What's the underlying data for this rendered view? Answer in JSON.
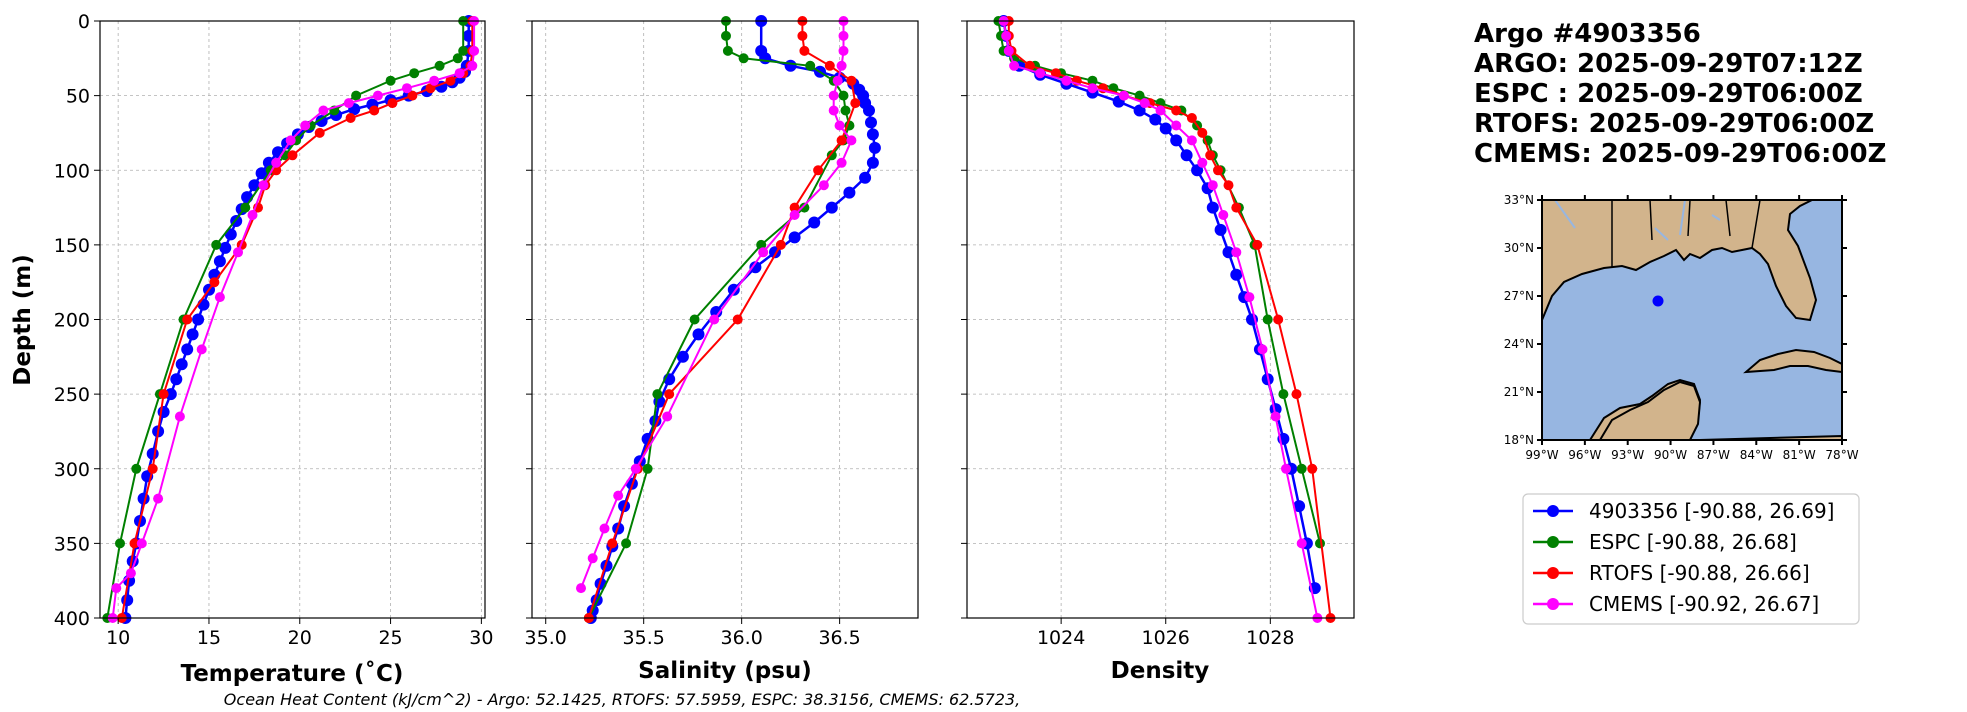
{
  "chart_data": [
    {
      "type": "line",
      "panel": "temperature",
      "xlabel": "Temperature (˚C)",
      "ylabel": "Depth (m)",
      "xlim": [
        9,
        30.2
      ],
      "ylim": [
        400,
        0
      ],
      "xticks": [
        10,
        15,
        20,
        25,
        30
      ],
      "yticks": [
        0,
        50,
        100,
        150,
        200,
        250,
        300,
        350,
        400
      ],
      "grid": true,
      "series": [
        {
          "name": "4903356",
          "color": "#0000ff",
          "x": [
            29.3,
            29.3,
            29.3,
            29.2,
            29.1,
            28.8,
            28.4,
            27.8,
            27.0,
            26.0,
            25.0,
            24.0,
            23.0,
            22.0,
            21.2,
            20.5,
            19.9,
            19.3,
            18.8,
            18.3,
            17.9,
            17.5,
            17.1,
            16.8,
            16.5,
            16.2,
            15.9,
            15.6,
            15.3,
            15.0,
            14.7,
            14.4,
            14.1,
            13.8,
            13.5,
            13.2,
            12.9,
            12.5,
            12.2,
            11.9,
            11.6,
            11.4,
            11.2,
            11.0,
            10.8,
            10.6,
            10.5,
            10.4
          ],
          "y": [
            0,
            10,
            20,
            30,
            34,
            38,
            41,
            44,
            47,
            50,
            53,
            56,
            59,
            63,
            67,
            71,
            76,
            82,
            88,
            95,
            102,
            110,
            118,
            126,
            134,
            143,
            152,
            161,
            170,
            180,
            190,
            200,
            210,
            220,
            230,
            240,
            250,
            262,
            275,
            290,
            305,
            320,
            335,
            350,
            362,
            375,
            388,
            400
          ]
        },
        {
          "name": "ESPC",
          "color": "#008000",
          "x": [
            29.0,
            29.0,
            28.7,
            27.7,
            26.3,
            25.0,
            23.1,
            21.9,
            20.6,
            19.8,
            19.2,
            18.4,
            17.0,
            15.4,
            13.6,
            12.3,
            11.0,
            10.1,
            9.4
          ],
          "y": [
            0,
            20,
            25,
            30,
            35,
            40,
            50,
            60,
            70,
            80,
            90,
            100,
            125,
            150,
            200,
            250,
            300,
            350,
            400
          ]
        },
        {
          "name": "RTOFS",
          "color": "#ff0000",
          "x": [
            29.5,
            29.5,
            29.4,
            29.0,
            28.3,
            27.2,
            26.2,
            25.1,
            24.1,
            22.8,
            21.1,
            19.6,
            18.7,
            18.1,
            17.7,
            16.8,
            15.3,
            13.8,
            12.5,
            11.9,
            10.9,
            10.2
          ],
          "y": [
            0,
            20,
            30,
            35,
            40,
            45,
            50,
            55,
            60,
            65,
            75,
            90,
            100,
            110,
            125,
            150,
            175,
            200,
            250,
            300,
            350,
            400
          ]
        },
        {
          "name": "CMEMS",
          "color": "#ff00ff",
          "x": [
            29.6,
            29.6,
            29.5,
            28.8,
            27.4,
            25.9,
            24.3,
            22.7,
            21.3,
            20.3,
            19.5,
            18.7,
            18.0,
            17.4,
            16.6,
            15.6,
            14.6,
            13.4,
            12.2,
            11.3,
            10.7,
            9.9,
            9.7
          ],
          "y": [
            0,
            20,
            30,
            35,
            40,
            45,
            50,
            55,
            60,
            70,
            80,
            95,
            110,
            130,
            155,
            185,
            220,
            265,
            320,
            350,
            370,
            380,
            400
          ]
        }
      ]
    },
    {
      "type": "line",
      "panel": "salinity",
      "xlabel": "Salinity (psu)",
      "xlim": [
        34.93,
        36.9
      ],
      "ylim": [
        400,
        0
      ],
      "xticks": [
        "35.0",
        "35.5",
        "36.0",
        "36.5"
      ],
      "yticks": [
        0,
        50,
        100,
        150,
        200,
        250,
        300,
        350,
        400
      ],
      "grid": true,
      "series": [
        {
          "name": "4903356",
          "color": "#0000ff",
          "x": [
            36.1,
            36.1,
            36.12,
            36.25,
            36.4,
            36.5,
            36.57,
            36.6,
            36.62,
            36.63,
            36.65,
            36.66,
            36.67,
            36.68,
            36.67,
            36.63,
            36.55,
            36.46,
            36.37,
            36.27,
            36.17,
            36.07,
            35.96,
            35.87,
            35.78,
            35.7,
            35.63,
            35.58,
            35.56,
            35.52,
            35.48,
            35.44,
            35.4,
            35.37,
            35.34,
            35.31,
            35.28,
            35.26,
            35.24,
            35.23
          ],
          "y": [
            0,
            20,
            25,
            30,
            34,
            38,
            42,
            46,
            50,
            55,
            60,
            68,
            76,
            85,
            95,
            105,
            115,
            125,
            135,
            145,
            155,
            165,
            180,
            195,
            210,
            225,
            240,
            255,
            268,
            280,
            295,
            310,
            325,
            340,
            352,
            365,
            377,
            388,
            395,
            400
          ]
        },
        {
          "name": "ESPC",
          "color": "#008000",
          "x": [
            35.92,
            35.92,
            35.93,
            36.01,
            36.35,
            36.47,
            36.52,
            36.53,
            36.55,
            36.52,
            36.46,
            36.32,
            36.1,
            35.76,
            35.57,
            35.52,
            35.41,
            35.22
          ],
          "y": [
            0,
            10,
            20,
            25,
            30,
            40,
            50,
            60,
            70,
            80,
            90,
            125,
            150,
            200,
            250,
            300,
            350,
            400
          ]
        },
        {
          "name": "RTOFS",
          "color": "#ff0000",
          "x": [
            36.31,
            36.31,
            36.32,
            36.45,
            36.56,
            36.58,
            36.51,
            36.39,
            36.27,
            36.2,
            35.98,
            35.63,
            35.47,
            35.34,
            35.22
          ],
          "y": [
            0,
            10,
            20,
            30,
            40,
            55,
            80,
            100,
            125,
            150,
            200,
            250,
            300,
            350,
            400
          ]
        },
        {
          "name": "CMEMS",
          "color": "#ff00ff",
          "x": [
            36.52,
            36.52,
            36.52,
            36.51,
            36.49,
            36.47,
            36.47,
            36.5,
            36.56,
            36.51,
            36.42,
            36.27,
            36.11,
            35.86,
            35.62,
            35.46,
            35.37,
            35.3,
            35.24,
            35.18
          ],
          "y": [
            0,
            10,
            20,
            30,
            40,
            50,
            60,
            70,
            80,
            95,
            110,
            130,
            155,
            200,
            265,
            300,
            318,
            340,
            360,
            380
          ]
        }
      ]
    },
    {
      "type": "line",
      "panel": "density",
      "xlabel": "Density",
      "xlim": [
        1022.2,
        1029.6
      ],
      "ylim": [
        400,
        0
      ],
      "xticks": [
        1024,
        1026,
        1028
      ],
      "yticks": [
        0,
        50,
        100,
        150,
        200,
        250,
        300,
        350,
        400
      ],
      "grid": true,
      "series": [
        {
          "name": "4903356",
          "color": "#0000ff",
          "x": [
            1022.9,
            1022.95,
            1023.0,
            1023.2,
            1023.6,
            1024.1,
            1024.6,
            1025.1,
            1025.5,
            1025.8,
            1026.0,
            1026.2,
            1026.4,
            1026.6,
            1026.8,
            1026.9,
            1027.05,
            1027.2,
            1027.35,
            1027.5,
            1027.65,
            1027.8,
            1027.95,
            1028.1,
            1028.25,
            1028.4,
            1028.55,
            1028.7,
            1028.85
          ],
          "y": [
            0,
            10,
            20,
            30,
            36,
            42,
            48,
            54,
            60,
            66,
            72,
            80,
            90,
            100,
            112,
            125,
            140,
            155,
            170,
            185,
            200,
            220,
            240,
            260,
            280,
            300,
            325,
            350,
            380
          ]
        },
        {
          "name": "ESPC",
          "color": "#008000",
          "x": [
            1022.8,
            1022.85,
            1022.9,
            1023.1,
            1023.5,
            1024.0,
            1024.6,
            1025.0,
            1025.5,
            1025.9,
            1026.3,
            1026.6,
            1026.8,
            1026.9,
            1027.05,
            1027.4,
            1027.7,
            1027.95,
            1028.25,
            1028.6,
            1028.95
          ],
          "y": [
            0,
            10,
            20,
            25,
            30,
            35,
            40,
            45,
            50,
            55,
            60,
            70,
            80,
            90,
            100,
            125,
            150,
            200,
            250,
            300,
            350
          ]
        },
        {
          "name": "RTOFS",
          "color": "#ff0000",
          "x": [
            1023.0,
            1023.0,
            1023.05,
            1023.4,
            1023.9,
            1024.3,
            1024.8,
            1025.2,
            1025.7,
            1026.2,
            1026.5,
            1026.7,
            1026.85,
            1027.0,
            1027.2,
            1027.35,
            1027.75,
            1028.15,
            1028.5,
            1028.8,
            1029.15
          ],
          "y": [
            0,
            10,
            20,
            30,
            35,
            40,
            45,
            50,
            55,
            60,
            65,
            75,
            90,
            100,
            110,
            125,
            150,
            200,
            250,
            300,
            400
          ]
        },
        {
          "name": "CMEMS",
          "color": "#ff00ff",
          "x": [
            1022.9,
            1022.95,
            1023.0,
            1023.1,
            1023.6,
            1024.1,
            1024.6,
            1025.2,
            1025.6,
            1025.9,
            1026.2,
            1026.5,
            1026.7,
            1026.9,
            1027.1,
            1027.35,
            1027.6,
            1027.85,
            1028.1,
            1028.3,
            1028.6,
            1028.9
          ],
          "y": [
            0,
            10,
            20,
            30,
            35,
            40,
            45,
            50,
            55,
            60,
            70,
            80,
            95,
            110,
            130,
            155,
            185,
            220,
            265,
            300,
            350,
            400
          ]
        }
      ]
    }
  ],
  "info": {
    "lines": [
      "Argo #4903356",
      "ARGO: 2025-09-29T07:12Z",
      "ESPC : 2025-09-29T06:00Z",
      "RTOFS: 2025-09-29T06:00Z",
      "CMEMS: 2025-09-29T06:00Z"
    ]
  },
  "map": {
    "lat_labels": [
      "33°N",
      "30°N",
      "27°N",
      "24°N",
      "21°N",
      "18°N"
    ],
    "lon_labels": [
      "99°W",
      "96°W",
      "93°W",
      "90°W",
      "87°W",
      "84°W",
      "81°W",
      "78°W"
    ],
    "float_position": {
      "lon": -90.88,
      "lat": 26.69
    },
    "extent": {
      "lon_min": -99,
      "lon_max": -78,
      "lat_min": 18,
      "lat_max": 33
    },
    "land_color": "#d2b48c",
    "ocean_color": "#97b6e1",
    "marker_color": "#0000ff"
  },
  "legend": {
    "items": [
      {
        "label": "4903356 [-90.88, 26.69]",
        "color": "#0000ff"
      },
      {
        "label": "ESPC [-90.88, 26.68]",
        "color": "#008000"
      },
      {
        "label": "RTOFS [-90.88, 26.66]",
        "color": "#ff0000"
      },
      {
        "label": "CMEMS [-90.92, 26.67]",
        "color": "#ff00ff"
      }
    ]
  },
  "footer": {
    "text": "Ocean Heat Content (kJ/cm^2) - Argo: 52.1425,  RTOFS: 57.5959,  ESPC: 38.3156,  CMEMS: 62.5723,"
  }
}
